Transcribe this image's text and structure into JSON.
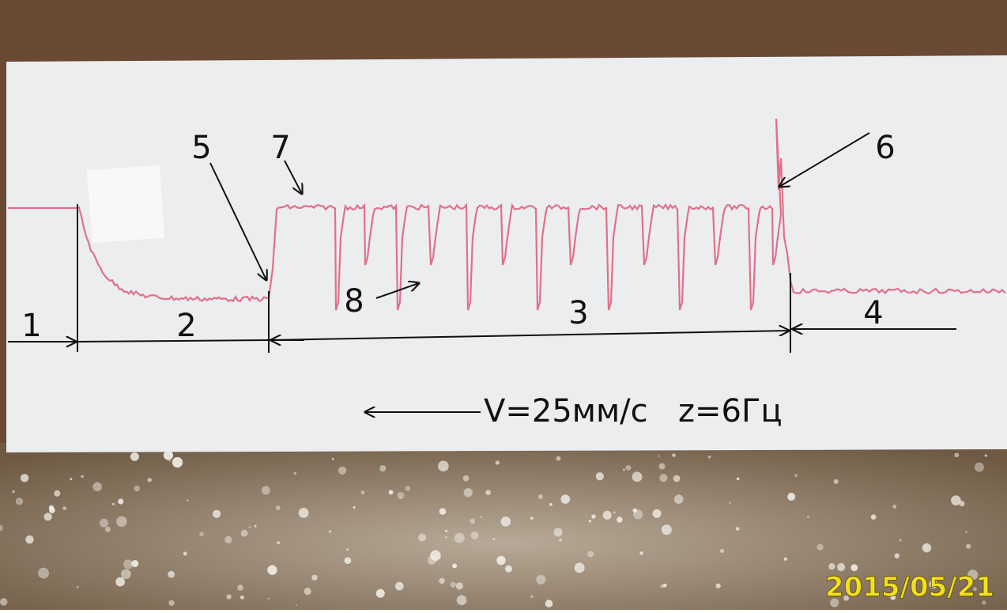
{
  "annotations": {
    "labels": [
      "1",
      "2",
      "3",
      "4",
      "5",
      "6",
      "7",
      "8"
    ],
    "speed": "V=25мм/с",
    "frequency": "z=6Гц"
  },
  "timestamp": "2015/05/21"
}
